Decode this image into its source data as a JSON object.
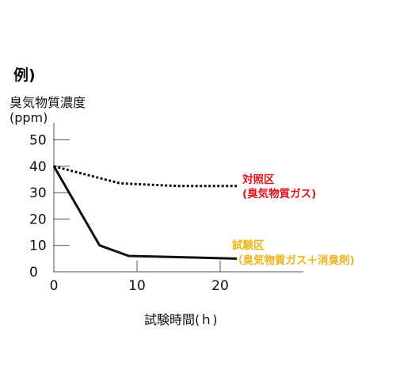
{
  "header": {
    "example_label": "例)"
  },
  "legend": {
    "control": {
      "line1": "対照区",
      "line2": "(臭気物質ガス)",
      "color": "#e0121c"
    },
    "test": {
      "line1": "試験区",
      "line2": "（臭気物質ガス＋消臭剤)",
      "color": "#f2b318"
    }
  },
  "chart_data": {
    "type": "line",
    "ylabel_line1": "臭気物質濃度",
    "ylabel_line2": "(ppm)",
    "xlabel": "試験時間(ｈ)",
    "xlim": [
      0,
      30
    ],
    "ylim": [
      0,
      55
    ],
    "x_ticks": [
      0,
      10,
      20
    ],
    "y_ticks": [
      0,
      10,
      20,
      30,
      40,
      50
    ],
    "grid": false,
    "series": [
      {
        "name": "対照区",
        "style": "dotted",
        "color": "#111111",
        "x": [
          0,
          8,
          15,
          22
        ],
        "y": [
          40,
          33.5,
          32.5,
          32.5
        ]
      },
      {
        "name": "試験区",
        "style": "solid",
        "color": "#111111",
        "x": [
          0,
          5.5,
          9,
          22
        ],
        "y": [
          40,
          10,
          6,
          5
        ]
      }
    ]
  }
}
